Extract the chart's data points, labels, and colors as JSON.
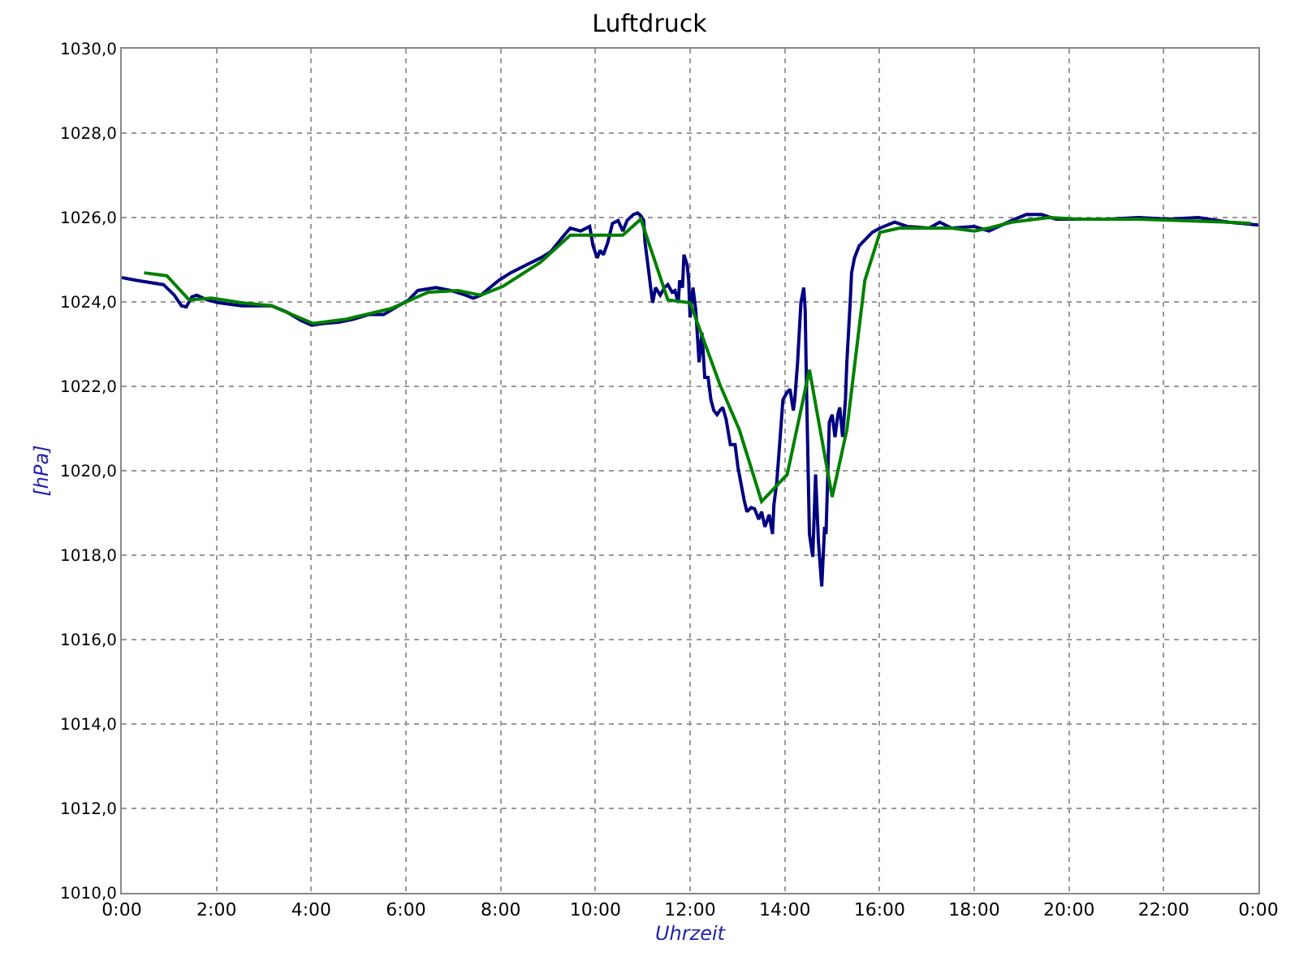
{
  "chart_data": {
    "type": "line",
    "title": "Luftdruck",
    "xlabel": "Uhrzeit",
    "ylabel": "[hPa]",
    "xlim": [
      0,
      24
    ],
    "ylim": [
      1010,
      1030
    ],
    "xticks": [
      {
        "value": 0,
        "label": "0:00"
      },
      {
        "value": 2,
        "label": "2:00"
      },
      {
        "value": 4,
        "label": "4:00"
      },
      {
        "value": 6,
        "label": "6:00"
      },
      {
        "value": 8,
        "label": "8:00"
      },
      {
        "value": 10,
        "label": "10:00"
      },
      {
        "value": 12,
        "label": "12:00"
      },
      {
        "value": 14,
        "label": "14:00"
      },
      {
        "value": 16,
        "label": "16:00"
      },
      {
        "value": 18,
        "label": "18:00"
      },
      {
        "value": 20,
        "label": "20:00"
      },
      {
        "value": 22,
        "label": "22:00"
      },
      {
        "value": 24,
        "label": "0:00"
      }
    ],
    "yticks": [
      {
        "value": 1010,
        "label": "1010,0"
      },
      {
        "value": 1012,
        "label": "1012,0"
      },
      {
        "value": 1014,
        "label": "1014,0"
      },
      {
        "value": 1016,
        "label": "1016,0"
      },
      {
        "value": 1018,
        "label": "1018,0"
      },
      {
        "value": 1020,
        "label": "1020,0"
      },
      {
        "value": 1022,
        "label": "1022,0"
      },
      {
        "value": 1024,
        "label": "1024,0"
      },
      {
        "value": 1026,
        "label": "1026,0"
      },
      {
        "value": 1028,
        "label": "1028,0"
      },
      {
        "value": 1030,
        "label": "1030,0"
      }
    ],
    "grid": true,
    "marker": "none",
    "line_style": "solid",
    "series": [
      {
        "color": "#000080",
        "x": [
          0,
          0.32,
          0.88,
          1.11,
          1.26,
          1.36,
          1.48,
          1.58,
          1.8,
          2.05,
          2.53,
          3.16,
          3.47,
          3.79,
          4.01,
          4.26,
          4.58,
          4.89,
          5.21,
          5.53,
          5.84,
          6.06,
          6.25,
          6.63,
          6.95,
          7.26,
          7.42,
          7.58,
          7.96,
          8.21,
          8.53,
          8.84,
          9.06,
          9.31,
          9.47,
          9.69,
          9.88,
          9.95,
          10.04,
          10.1,
          10.17,
          10.26,
          10.36,
          10.48,
          10.58,
          10.67,
          10.8,
          10.89,
          10.96,
          11.02,
          11.05,
          11.11,
          11.18,
          11.21,
          11.27,
          11.37,
          11.46,
          11.53,
          11.62,
          11.68,
          11.75,
          11.78,
          11.84,
          11.87,
          11.94,
          11.97,
          12.0,
          12.06,
          12.12,
          12.19,
          12.25,
          12.31,
          12.38,
          12.44,
          12.5,
          12.57,
          12.63,
          12.69,
          12.76,
          12.85,
          12.95,
          13.01,
          13.07,
          13.14,
          13.2,
          13.29,
          13.36,
          13.45,
          13.51,
          13.58,
          13.67,
          13.74,
          13.77,
          13.83,
          13.89,
          13.96,
          14.05,
          14.11,
          14.18,
          14.21,
          14.27,
          14.34,
          14.4,
          14.43,
          14.46,
          14.52,
          14.59,
          14.65,
          14.71,
          14.78,
          14.84,
          14.87,
          14.94,
          15.0,
          15.06,
          15.12,
          15.16,
          15.22,
          15.28,
          15.31,
          15.38,
          15.41,
          15.47,
          15.57,
          15.69,
          15.85,
          16.01,
          16.32,
          16.58,
          17.05,
          17.27,
          17.52,
          18.0,
          18.31,
          18.79,
          19.1,
          19.42,
          19.73,
          20.21,
          20.84,
          21.47,
          22.1,
          22.73,
          23.37,
          24.0
        ],
        "values": [
          1024.58,
          1024.51,
          1024.41,
          1024.16,
          1023.91,
          1023.88,
          1024.12,
          1024.16,
          1024.05,
          1023.98,
          1023.91,
          1023.91,
          1023.77,
          1023.56,
          1023.45,
          1023.49,
          1023.52,
          1023.59,
          1023.7,
          1023.7,
          1023.91,
          1024.05,
          1024.27,
          1024.34,
          1024.27,
          1024.16,
          1024.09,
          1024.16,
          1024.51,
          1024.69,
          1024.87,
          1025.04,
          1025.19,
          1025.54,
          1025.75,
          1025.68,
          1025.79,
          1025.33,
          1025.04,
          1025.22,
          1025.12,
          1025.4,
          1025.86,
          1025.93,
          1025.68,
          1025.93,
          1026.07,
          1026.11,
          1026.04,
          1025.93,
          1025.4,
          1024.87,
          1024.23,
          1023.98,
          1024.34,
          1024.16,
          1024.34,
          1024.41,
          1024.23,
          1024.27,
          1023.98,
          1024.51,
          1024.34,
          1025.12,
          1024.87,
          1024.51,
          1023.63,
          1024.34,
          1023.81,
          1022.57,
          1023.27,
          1022.21,
          1022.21,
          1021.68,
          1021.43,
          1021.33,
          1021.43,
          1021.5,
          1021.22,
          1020.62,
          1020.62,
          1020.09,
          1019.73,
          1019.31,
          1019.03,
          1019.13,
          1019.1,
          1018.85,
          1019.03,
          1018.67,
          1018.96,
          1018.5,
          1019.2,
          1019.73,
          1020.62,
          1021.68,
          1021.86,
          1021.93,
          1021.43,
          1021.68,
          1022.57,
          1023.98,
          1024.34,
          1023.81,
          1021.86,
          1018.5,
          1017.96,
          1019.91,
          1018.32,
          1017.26,
          1018.67,
          1018.5,
          1021.15,
          1021.33,
          1020.8,
          1021.33,
          1021.5,
          1020.8,
          1021.68,
          1022.57,
          1023.98,
          1024.69,
          1025.04,
          1025.33,
          1025.47,
          1025.65,
          1025.75,
          1025.89,
          1025.79,
          1025.75,
          1025.89,
          1025.75,
          1025.79,
          1025.68,
          1025.93,
          1026.07,
          1026.07,
          1025.96,
          1025.96,
          1025.96,
          1026.0,
          1025.96,
          1026.0,
          1025.89,
          1025.82
        ]
      },
      {
        "color": "#008000",
        "x": [
          0.47,
          0.95,
          1.42,
          1.89,
          2.53,
          3.16,
          4.04,
          4.74,
          5.68,
          6.47,
          7.1,
          7.58,
          8.05,
          8.84,
          9.47,
          9.88,
          10.58,
          10.96,
          11.53,
          12.0,
          12.63,
          13.04,
          13.51,
          14.05,
          14.52,
          15.0,
          15.31,
          15.69,
          16.01,
          16.42,
          17.05,
          17.52,
          18.0,
          18.31,
          18.79,
          19.58,
          20.21,
          21.47,
          23.37,
          23.84
        ],
        "values": [
          1024.69,
          1024.62,
          1024.05,
          1024.09,
          1023.98,
          1023.91,
          1023.49,
          1023.59,
          1023.84,
          1024.23,
          1024.27,
          1024.16,
          1024.37,
          1024.94,
          1025.58,
          1025.58,
          1025.58,
          1025.96,
          1024.05,
          1023.98,
          1022.04,
          1020.97,
          1019.27,
          1019.91,
          1022.39,
          1019.38,
          1020.97,
          1024.51,
          1025.65,
          1025.75,
          1025.75,
          1025.75,
          1025.68,
          1025.75,
          1025.89,
          1026.0,
          1025.96,
          1025.96,
          1025.89,
          1025.86
        ]
      }
    ]
  }
}
